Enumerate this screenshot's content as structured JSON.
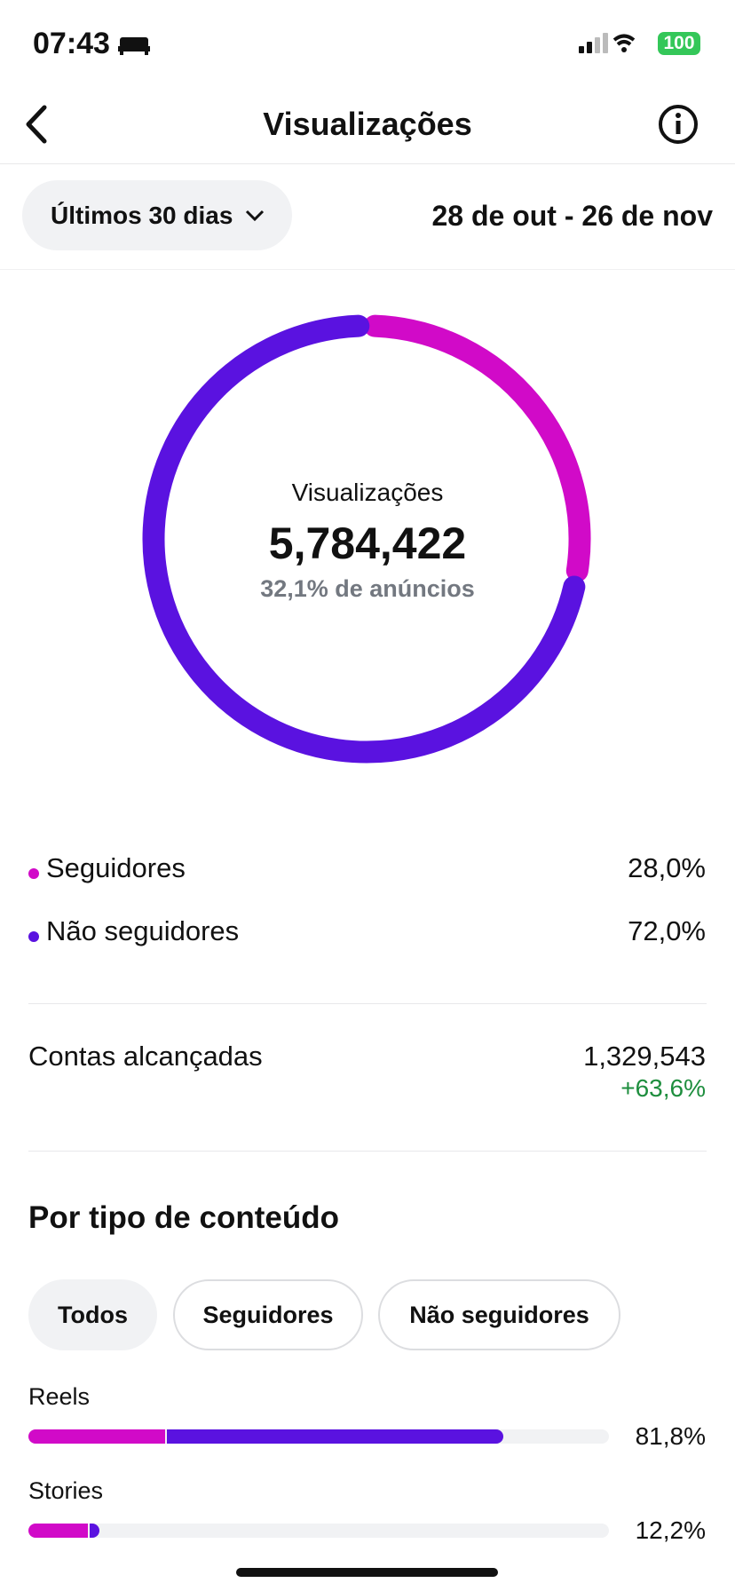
{
  "status": {
    "time": "07:43",
    "battery": "100"
  },
  "header": {
    "title": "Visualizações"
  },
  "filter": {
    "period": "Últimos 30 dias",
    "range": "28 de out - 26 de nov"
  },
  "summary": {
    "label": "Visualizações",
    "total": "5,784,422",
    "ads": "32,1% de anúncios"
  },
  "legend": {
    "items": [
      {
        "name": "Seguidores",
        "color": "#d10ac8",
        "value": 28.0,
        "value_label": "28,0%"
      },
      {
        "name": "Não seguidores",
        "color": "#5a12e0",
        "value": 72.0,
        "value_label": "72,0%"
      }
    ]
  },
  "reach": {
    "label": "Contas alcançadas",
    "value": "1,329,543",
    "change": "+63,6%"
  },
  "content": {
    "title": "Por tipo de conteúdo",
    "tabs": [
      "Todos",
      "Seguidores",
      "Não seguidores"
    ],
    "rows": [
      {
        "name": "Reels",
        "total_label": "81,8%",
        "segments": [
          23.6,
          58.2
        ]
      },
      {
        "name": "Stories",
        "total_label": "12,2%",
        "segments": [
          10.3,
          1.9
        ]
      }
    ]
  }
}
